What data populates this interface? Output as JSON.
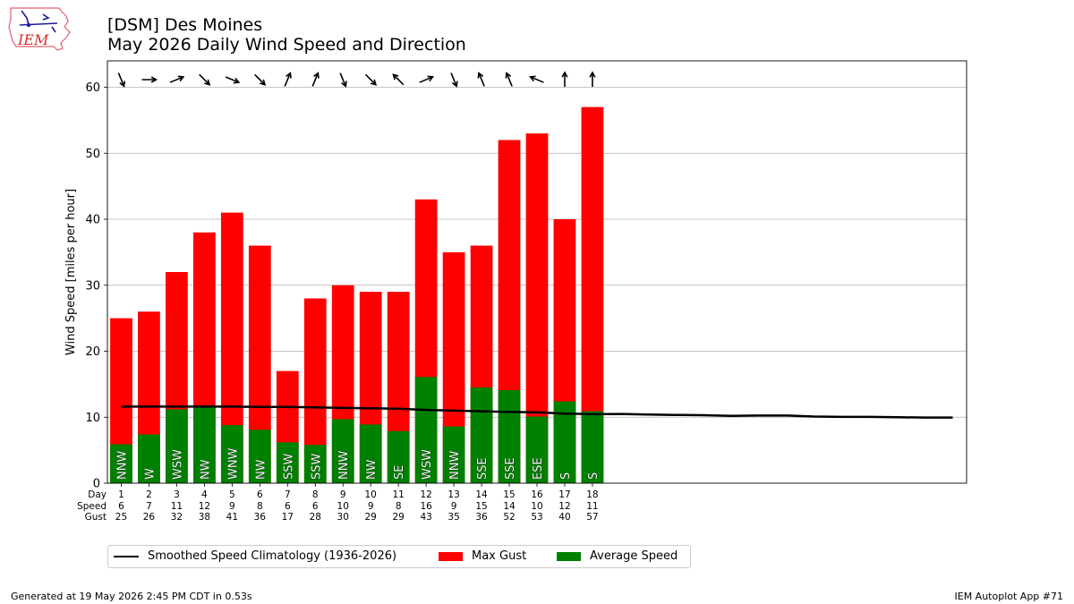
{
  "header": {
    "title_line1": "[DSM] Des Moines",
    "title_line2": "May 2026 Daily Wind Speed and Direction"
  },
  "logo": {
    "text": "IEM",
    "icon": "iowa-state-logo"
  },
  "footer": {
    "generated": "Generated at 19 May 2026 2:45 PM CDT in 0.53s",
    "app": "IEM Autoplot App #71"
  },
  "legend": {
    "climatology": "Smoothed Speed Climatology (1936-2026)",
    "gust": "Max Gust",
    "avg": "Average Speed"
  },
  "colors": {
    "gust": "#ff0000",
    "avg": "#008000",
    "climatology": "#000000",
    "grid": "#b0b0b0"
  },
  "chart_data": {
    "type": "bar",
    "ylabel": "Wind Speed [miles per hour]",
    "ylim": [
      0,
      64
    ],
    "yticks": [
      0,
      10,
      20,
      30,
      40,
      50,
      60
    ],
    "xlim_days": [
      0.5,
      31.5
    ],
    "grid": "horizontal",
    "legend_position": "below",
    "row_labels": [
      "Day",
      "Speed",
      "Gust"
    ],
    "days": [
      1,
      2,
      3,
      4,
      5,
      6,
      7,
      8,
      9,
      10,
      11,
      12,
      13,
      14,
      15,
      16,
      17,
      18
    ],
    "speed_labels": [
      6,
      7,
      11,
      12,
      9,
      8,
      6,
      6,
      10,
      9,
      8,
      16,
      9,
      15,
      14,
      10,
      12,
      11
    ],
    "gust_labels": [
      25,
      26,
      32,
      38,
      41,
      36,
      17,
      28,
      30,
      29,
      29,
      43,
      35,
      36,
      52,
      53,
      40,
      57
    ],
    "series": [
      {
        "name": "Max Gust",
        "values": [
          25,
          26,
          32,
          38,
          41,
          36,
          17,
          28,
          30,
          29,
          29,
          43,
          35,
          36,
          52,
          53,
          40,
          57
        ]
      },
      {
        "name": "Average Speed",
        "values": [
          5.9,
          7.4,
          11.2,
          11.8,
          8.8,
          8.1,
          6.2,
          5.8,
          9.7,
          8.9,
          7.9,
          16.1,
          8.6,
          14.5,
          14.1,
          10.1,
          12.4,
          10.9
        ]
      }
    ],
    "directions": [
      "NNW",
      "W",
      "WSW",
      "NW",
      "WNW",
      "NW",
      "SSW",
      "SSW",
      "NNW",
      "NW",
      "SE",
      "WSW",
      "NNW",
      "SSE",
      "SSE",
      "ESE",
      "S",
      "S"
    ],
    "climatology": {
      "name": "Smoothed Speed Climatology (1936-2026)",
      "days": [
        1,
        2,
        3,
        4,
        5,
        6,
        7,
        8,
        9,
        10,
        11,
        12,
        13,
        14,
        15,
        16,
        17,
        18,
        19,
        20,
        21,
        22,
        23,
        24,
        25,
        26,
        27,
        28,
        29,
        30,
        31
      ],
      "values": [
        11.6,
        11.6,
        11.6,
        11.6,
        11.6,
        11.55,
        11.55,
        11.5,
        11.4,
        11.35,
        11.3,
        11.1,
        11.0,
        10.9,
        10.8,
        10.75,
        10.55,
        10.45,
        10.5,
        10.4,
        10.35,
        10.3,
        10.2,
        10.25,
        10.25,
        10.1,
        10.05,
        10.05,
        10.0,
        9.95,
        9.95
      ]
    }
  }
}
